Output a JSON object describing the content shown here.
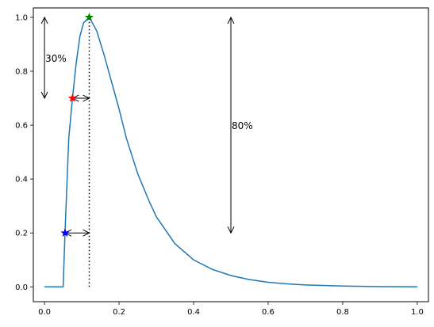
{
  "chart_data": {
    "type": "line",
    "title": "",
    "xlabel": "",
    "ylabel": "",
    "xlim": [
      -0.03,
      1.03
    ],
    "ylim": [
      -0.055,
      1.035
    ],
    "grid": false,
    "legend": null,
    "x_ticks": [
      0.0,
      0.2,
      0.4,
      0.6,
      0.8,
      1.0
    ],
    "x_tick_labels": [
      "0.0",
      "0.2",
      "0.4",
      "0.6",
      "0.8",
      "1.0"
    ],
    "y_ticks": [
      0.0,
      0.2,
      0.4,
      0.6,
      0.8,
      1.0
    ],
    "y_tick_labels": [
      "0.0",
      "0.2",
      "0.4",
      "0.6",
      "0.8",
      "1.0"
    ],
    "series": [
      {
        "color": "#1f77b4",
        "x": [
          0.0,
          0.05,
          0.055,
          0.065,
          0.075,
          0.085,
          0.095,
          0.105,
          0.12,
          0.14,
          0.16,
          0.18,
          0.2,
          0.22,
          0.25,
          0.28,
          0.3,
          0.35,
          0.4,
          0.45,
          0.5,
          0.55,
          0.6,
          0.65,
          0.7,
          0.8,
          0.9,
          1.0
        ],
        "y": [
          0.0,
          0.0,
          0.2,
          0.55,
          0.7,
          0.83,
          0.93,
          0.98,
          1.0,
          0.95,
          0.86,
          0.76,
          0.66,
          0.55,
          0.42,
          0.32,
          0.26,
          0.16,
          0.1,
          0.065,
          0.042,
          0.027,
          0.017,
          0.011,
          0.007,
          0.003,
          0.001,
          0.0
        ]
      }
    ],
    "markers": [
      {
        "x": 0.12,
        "y": 1.0,
        "color": "#008000",
        "shape": "star"
      },
      {
        "x": 0.075,
        "y": 0.7,
        "color": "#ff0000",
        "shape": "star"
      },
      {
        "x": 0.055,
        "y": 0.2,
        "color": "#0000ff",
        "shape": "star"
      }
    ],
    "peak_line": {
      "x": 0.12,
      "y_from": 0.0,
      "y_to": 1.0,
      "style": "dotted",
      "color": "#000000"
    },
    "arrows": [
      {
        "x1": 0.0,
        "y1": 0.7,
        "x2": 0.0,
        "y2": 1.0,
        "both_ends": true
      },
      {
        "x1": 0.5,
        "y1": 0.2,
        "x2": 0.5,
        "y2": 1.0,
        "both_ends": true
      },
      {
        "x1": 0.075,
        "y1": 0.7,
        "x2": 0.12,
        "y2": 0.7,
        "both_ends": true
      },
      {
        "x1": 0.055,
        "y1": 0.2,
        "x2": 0.12,
        "y2": 0.2,
        "both_ends": true
      }
    ],
    "annotations": [
      {
        "text": "30%",
        "x": 0.0,
        "y": 0.85
      },
      {
        "text": "80%",
        "x": 0.5,
        "y": 0.6
      }
    ]
  }
}
